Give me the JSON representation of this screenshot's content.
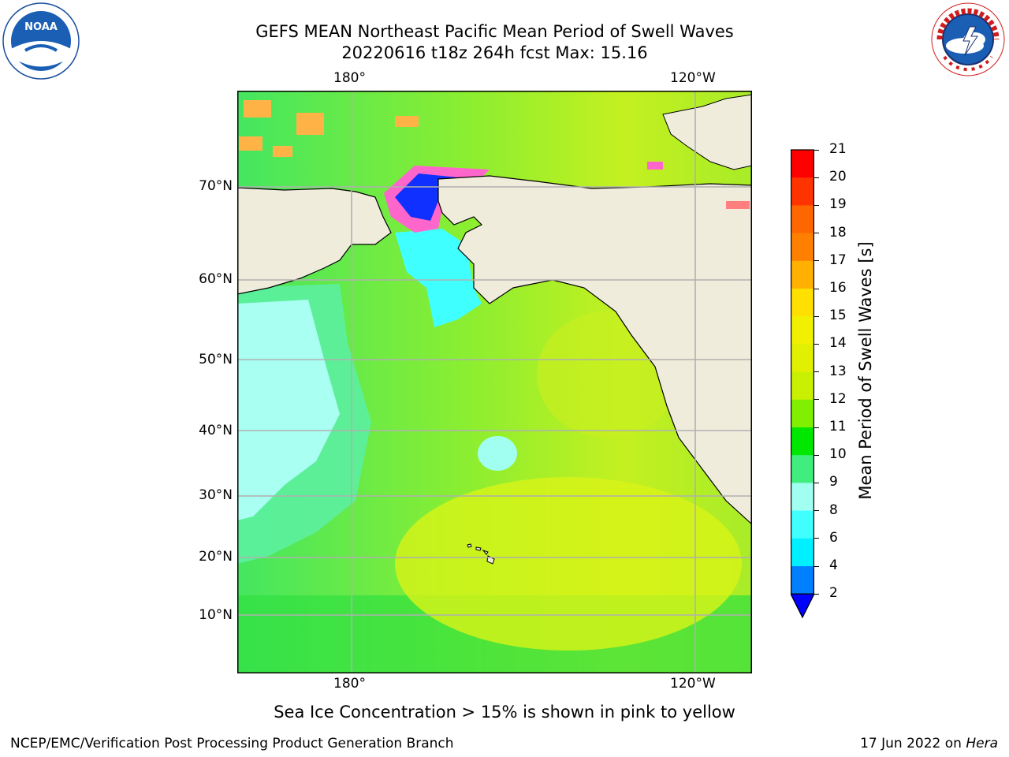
{
  "header": {
    "title_line1": "GEFS MEAN Northeast Pacific Mean Period of Swell Waves",
    "title_line2": "20220616 t18z 264h fcst   Max: 15.16"
  },
  "logos": {
    "noaa_text": "NOAA",
    "nws_text": "NATIONAL WEATHER SERVICE"
  },
  "map": {
    "lon_labels": [
      "180°",
      "120°W"
    ],
    "lat_labels": [
      "70°N",
      "60°N",
      "50°N",
      "40°N",
      "30°N",
      "20°N",
      "10°N"
    ],
    "land_color": "#efecdc",
    "ice_colors": [
      "#ff66cc",
      "#ffb347",
      "#ffff66"
    ]
  },
  "colorbar": {
    "title": "Mean Period of Swell Waves [s]",
    "labels": [
      "21",
      "20",
      "19",
      "18",
      "17",
      "16",
      "15",
      "14",
      "13",
      "12",
      "11",
      "10",
      "9",
      "8",
      "6",
      "4",
      "2"
    ],
    "colors": [
      "#ff0000",
      "#ff3300",
      "#ff6600",
      "#ff8000",
      "#ffb000",
      "#ffe000",
      "#f0f000",
      "#e0f000",
      "#c8f000",
      "#80f000",
      "#00e800",
      "#40ee80",
      "#a0fff0",
      "#40ffff",
      "#00f0ff",
      "#0080ff"
    ],
    "extend_color": "#0000ff"
  },
  "footer": {
    "note": "Sea Ice Concentration > 15% is shown in pink to yellow",
    "credit": "NCEP/EMC/Verification Post Processing Product Generation Branch",
    "date": "17 Jun 2022 on ",
    "machine": "Hera"
  }
}
